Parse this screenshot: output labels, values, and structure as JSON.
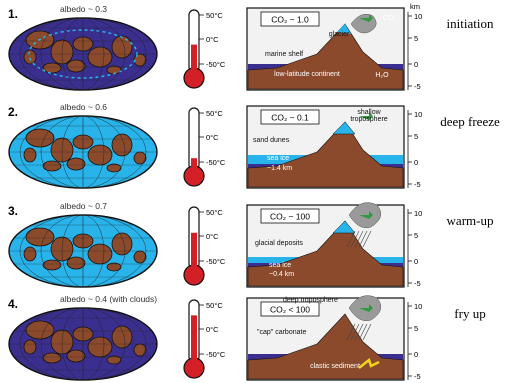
{
  "colors": {
    "ocean_deep": "#3a2f8e",
    "ice_light": "#28b4ea",
    "land": "#8b4a2b",
    "mercury": "#d31f26",
    "sky": "#f2f2f2",
    "plant": "#2e9b3e",
    "sediment": "#f2d21a",
    "cloud": "#9a9a9a"
  },
  "panels": [
    {
      "number": "1.",
      "albedo": "albedo ~ 0.3",
      "co2": "CO₂ ~ 1.0",
      "stage": "initiation",
      "ocean_color": "ocean_deep",
      "mercury_level": 0.45,
      "notes": [
        "glacier",
        "marine shelf",
        "low-latitude continent",
        "H₂O",
        "CO₂"
      ]
    },
    {
      "number": "2.",
      "albedo": "albedo ~ 0.6",
      "co2": "CO₂ ~ 0.1",
      "stage": "deep freeze",
      "ocean_color": "ice_light",
      "mercury_level": 0.15,
      "notes": [
        "shallow",
        "troposphere",
        "sand dunes",
        "sea ice",
        "~1.4 km"
      ]
    },
    {
      "number": "3.",
      "albedo": "albedo ~ 0.7",
      "co2": "CO₂ ~ 100",
      "stage": "warm-up",
      "ocean_color": "ice_light",
      "mercury_level": 0.62,
      "notes": [
        "glacial deposits",
        "sea ice",
        "~0.4 km"
      ]
    },
    {
      "number": "4.",
      "albedo": "albedo ~ 0.4 (with clouds)",
      "co2": "CO₂ < 100",
      "stage": "fry up",
      "ocean_color": "ocean_deep",
      "mercury_level": 0.82,
      "notes": [
        "deep troposphere",
        "\"cap\" carbonate",
        "clastic sediment"
      ]
    }
  ],
  "thermometer": {
    "ticks": [
      "50°C",
      "0°C",
      "-50°C"
    ]
  },
  "profile_axis": {
    "unit": "km",
    "ticks": [
      "10",
      "5",
      "0",
      "-5"
    ]
  }
}
